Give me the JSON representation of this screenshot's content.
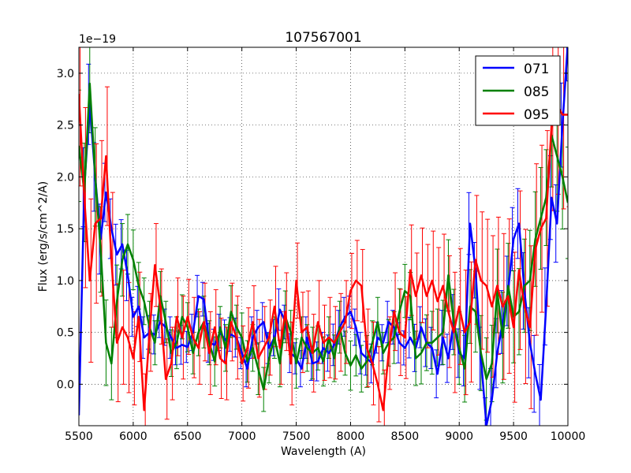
{
  "chart_data": {
    "type": "line",
    "title": "107567001",
    "xlabel": "Wavelength (A)",
    "ylabel": "Flux (erg/s/cm^2/A)",
    "offset_text": "1e−19",
    "xlim": [
      5500,
      10000
    ],
    "ylim": [
      -0.4,
      3.25
    ],
    "xticks": [
      5500,
      6000,
      6500,
      7000,
      7500,
      8000,
      8500,
      9000,
      9500,
      10000
    ],
    "xtick_labels": [
      "5500",
      "6000",
      "6500",
      "7000",
      "7500",
      "8000",
      "8500",
      "9000",
      "9500",
      "10000"
    ],
    "yticks": [
      0.0,
      0.5,
      1.0,
      1.5,
      2.0,
      2.5,
      3.0
    ],
    "ytick_labels": [
      "0.0",
      "0.5",
      "1.0",
      "1.5",
      "2.0",
      "2.5",
      "3.0"
    ],
    "grid": true,
    "legend_position": "top-right",
    "series": [
      {
        "name": "071",
        "color": "#0000ff",
        "x": [
          5500,
          5550,
          5600,
          5650,
          5700,
          5750,
          5800,
          5850,
          5900,
          5950,
          6000,
          6050,
          6100,
          6150,
          6200,
          6250,
          6300,
          6350,
          6400,
          6450,
          6500,
          6550,
          6600,
          6650,
          6700,
          6750,
          6800,
          6850,
          6900,
          6950,
          7000,
          7050,
          7100,
          7150,
          7200,
          7250,
          7300,
          7350,
          7400,
          7450,
          7500,
          7550,
          7600,
          7650,
          7700,
          7750,
          7800,
          7850,
          7900,
          7950,
          8000,
          8050,
          8100,
          8150,
          8200,
          8250,
          8300,
          8350,
          8400,
          8450,
          8500,
          8550,
          8600,
          8650,
          8700,
          8750,
          8800,
          8850,
          8900,
          8950,
          9000,
          9050,
          9100,
          9150,
          9200,
          9250,
          9300,
          9350,
          9400,
          9450,
          9500,
          9550,
          9600,
          9650,
          9700,
          9750,
          9800,
          9850,
          9900,
          9950,
          10000
        ],
        "values": [
          -0.3,
          1.9,
          2.7,
          2.0,
          1.4,
          1.85,
          1.5,
          1.25,
          1.35,
          1.05,
          0.65,
          0.75,
          0.45,
          0.5,
          0.48,
          0.6,
          0.55,
          0.45,
          0.35,
          0.38,
          0.36,
          0.5,
          0.85,
          0.82,
          0.4,
          0.38,
          0.5,
          0.42,
          0.48,
          0.45,
          0.3,
          0.15,
          0.45,
          0.55,
          0.6,
          0.35,
          0.45,
          0.72,
          0.6,
          0.3,
          0.25,
          0.15,
          0.45,
          0.2,
          0.22,
          0.35,
          0.3,
          0.38,
          0.55,
          0.65,
          0.7,
          0.55,
          0.3,
          0.25,
          0.2,
          0.45,
          0.4,
          0.6,
          0.55,
          0.4,
          0.35,
          0.45,
          0.35,
          0.55,
          0.4,
          0.35,
          0.1,
          0.45,
          0.25,
          0.6,
          0.3,
          0.25,
          1.55,
          1.1,
          0.25,
          -0.4,
          -0.15,
          0.3,
          0.6,
          0.9,
          1.4,
          1.55,
          0.9,
          0.4,
          0.1,
          -0.15,
          0.75,
          1.8,
          1.55,
          2.5,
          3.3
        ]
      },
      {
        "name": "085",
        "color": "#008000",
        "x": [
          5500,
          5550,
          5600,
          5650,
          5700,
          5750,
          5800,
          5850,
          5900,
          5950,
          6000,
          6050,
          6100,
          6150,
          6200,
          6250,
          6300,
          6350,
          6400,
          6450,
          6500,
          6550,
          6600,
          6650,
          6700,
          6750,
          6800,
          6850,
          6900,
          6950,
          7000,
          7050,
          7100,
          7150,
          7200,
          7250,
          7300,
          7350,
          7400,
          7450,
          7500,
          7550,
          7600,
          7650,
          7700,
          7750,
          7800,
          7850,
          7900,
          7950,
          8000,
          8050,
          8100,
          8150,
          8200,
          8250,
          8300,
          8350,
          8400,
          8450,
          8500,
          8550,
          8600,
          8650,
          8700,
          8750,
          8800,
          8850,
          8900,
          8950,
          9000,
          9050,
          9100,
          9150,
          9200,
          9250,
          9300,
          9350,
          9400,
          9450,
          9500,
          9550,
          9600,
          9650,
          9700,
          9750,
          9800,
          9850,
          9900,
          9950,
          10000
        ],
        "values": [
          2.3,
          1.85,
          2.9,
          2.0,
          1.3,
          0.4,
          0.2,
          0.8,
          1.2,
          1.35,
          1.2,
          0.95,
          0.8,
          0.55,
          0.4,
          0.85,
          0.6,
          0.3,
          0.4,
          0.65,
          0.55,
          0.3,
          0.5,
          0.6,
          0.4,
          0.22,
          0.55,
          0.35,
          0.7,
          0.55,
          0.45,
          0.22,
          0.35,
          0.15,
          -0.05,
          0.25,
          0.45,
          0.2,
          0.65,
          0.5,
          0.2,
          0.45,
          0.35,
          0.3,
          0.35,
          0.22,
          0.45,
          0.25,
          0.55,
          0.3,
          0.18,
          0.28,
          0.15,
          0.22,
          0.4,
          0.6,
          0.3,
          0.4,
          0.45,
          0.7,
          0.9,
          0.85,
          0.25,
          0.3,
          0.4,
          0.4,
          0.45,
          0.5,
          1.05,
          0.6,
          0.35,
          0.15,
          0.75,
          0.7,
          0.3,
          0.05,
          0.2,
          0.9,
          0.45,
          0.95,
          0.65,
          0.7,
          0.95,
          1.0,
          1.4,
          1.6,
          1.8,
          2.4,
          2.2,
          2.0,
          1.75
        ]
      },
      {
        "name": "095",
        "color": "#ff0000",
        "x": [
          5500,
          5550,
          5600,
          5650,
          5700,
          5750,
          5800,
          5850,
          5900,
          5950,
          6000,
          6050,
          6100,
          6150,
          6200,
          6250,
          6300,
          6350,
          6400,
          6450,
          6500,
          6550,
          6600,
          6650,
          6700,
          6750,
          6800,
          6850,
          6900,
          6950,
          7000,
          7050,
          7100,
          7150,
          7200,
          7250,
          7300,
          7350,
          7400,
          7450,
          7500,
          7550,
          7600,
          7650,
          7700,
          7750,
          7800,
          7850,
          7900,
          7950,
          8000,
          8050,
          8100,
          8150,
          8200,
          8250,
          8300,
          8350,
          8400,
          8450,
          8500,
          8550,
          8600,
          8650,
          8700,
          8750,
          8800,
          8850,
          8900,
          8950,
          9000,
          9050,
          9100,
          9150,
          9200,
          9250,
          9300,
          9350,
          9400,
          9450,
          9500,
          9550,
          9600,
          9650,
          9700,
          9750,
          9800,
          9850,
          9900,
          9950,
          10000
        ],
        "values": [
          2.8,
          1.8,
          1.0,
          1.55,
          1.6,
          2.2,
          1.2,
          0.4,
          0.55,
          0.45,
          0.25,
          0.65,
          -0.25,
          0.5,
          1.15,
          0.75,
          0.05,
          0.2,
          0.65,
          0.45,
          0.65,
          0.45,
          0.35,
          0.6,
          0.3,
          0.55,
          0.25,
          0.2,
          0.6,
          0.45,
          0.2,
          0.35,
          0.6,
          0.25,
          0.35,
          0.45,
          0.75,
          0.35,
          0.7,
          0.2,
          1.0,
          0.5,
          0.55,
          0.3,
          0.6,
          0.4,
          0.45,
          0.4,
          0.5,
          0.6,
          0.9,
          1.0,
          0.95,
          0.35,
          0.2,
          0.0,
          -0.25,
          0.3,
          0.7,
          0.5,
          0.45,
          1.1,
          0.85,
          1.05,
          0.85,
          1.0,
          0.8,
          0.95,
          0.7,
          0.5,
          0.75,
          0.5,
          0.6,
          1.2,
          1.0,
          0.95,
          0.75,
          0.95,
          0.75,
          0.85,
          0.55,
          1.1,
          0.75,
          0.55,
          1.3,
          1.5,
          1.6,
          2.5,
          2.7,
          2.6,
          2.6
        ]
      }
    ]
  }
}
